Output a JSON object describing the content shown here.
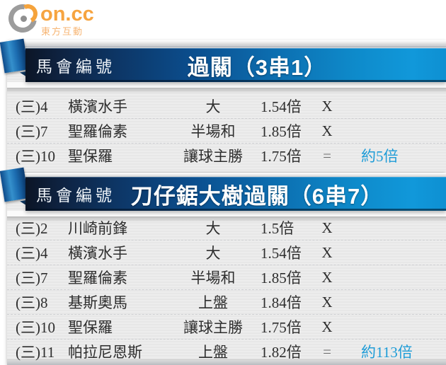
{
  "logo": {
    "brand": "on.cc",
    "subtitle": "東方互動"
  },
  "colors": {
    "band_dark_navy": "#0b1526",
    "band_bright_blue": "#1198da",
    "tail_blue": "#3590cc",
    "note_blue": "#1e9cd7",
    "brand_orange": "#f6a440",
    "row_text": "#2e2e2e",
    "card_gray": "#ebebeb"
  },
  "tables": [
    {
      "header": {
        "col_label": "馬會編號",
        "title": "過關（3串1）"
      },
      "rows": [
        {
          "no": "(三)4",
          "team": "橫濱水手",
          "bet": "大",
          "odds": "1.54倍",
          "mark": "X",
          "note": ""
        },
        {
          "no": "(三)7",
          "team": "聖羅倫素",
          "bet": "半場和",
          "odds": "1.85倍",
          "mark": "X",
          "note": ""
        },
        {
          "no": "(三)10",
          "team": "聖保羅",
          "bet": "讓球主勝",
          "odds": "1.75倍",
          "mark": "=",
          "note": "約5倍"
        }
      ]
    },
    {
      "header": {
        "col_label": "馬會編號",
        "title": "刀仔鋸大樹過關（6串7）"
      },
      "rows": [
        {
          "no": "(三)2",
          "team": "川崎前鋒",
          "bet": "大",
          "odds": "1.5倍",
          "mark": "X",
          "note": ""
        },
        {
          "no": "(三)4",
          "team": "橫濱水手",
          "bet": "大",
          "odds": "1.54倍",
          "mark": "X",
          "note": ""
        },
        {
          "no": "(三)7",
          "team": "聖羅倫素",
          "bet": "半場和",
          "odds": "1.85倍",
          "mark": "X",
          "note": ""
        },
        {
          "no": "(三)8",
          "team": "基斯奧馬",
          "bet": "上盤",
          "odds": "1.84倍",
          "mark": "X",
          "note": ""
        },
        {
          "no": "(三)10",
          "team": "聖保羅",
          "bet": "讓球主勝",
          "odds": "1.75倍",
          "mark": "X",
          "note": ""
        },
        {
          "no": "(三)11",
          "team": "帕拉尼恩斯",
          "bet": "上盤",
          "odds": "1.82倍",
          "mark": "=",
          "note": "約113倍"
        }
      ]
    }
  ]
}
